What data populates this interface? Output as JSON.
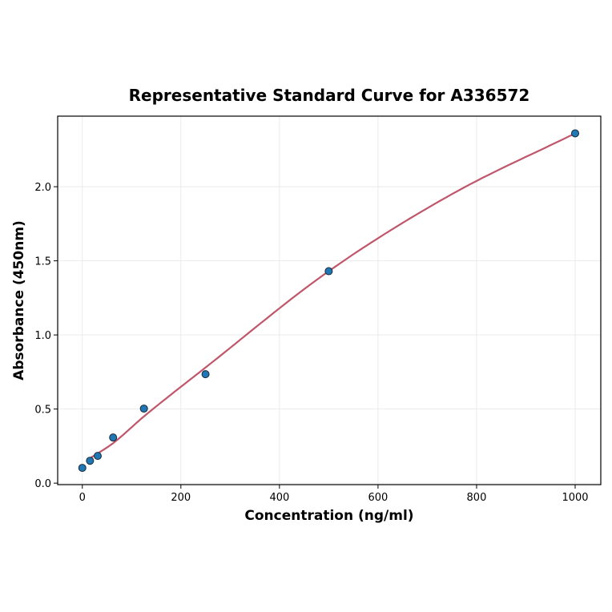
{
  "chart_data": {
    "type": "scatter",
    "title": "Representative Standard Curve for A336572",
    "xlabel": "Concentration (ng/ml)",
    "ylabel": "Absorbance (450nm)",
    "xlim": [
      -50,
      1052
    ],
    "ylim": [
      -0.01,
      2.476
    ],
    "xticks": [
      0,
      200,
      400,
      600,
      800,
      1000
    ],
    "xtick_labels": [
      "0",
      "200",
      "400",
      "600",
      "800",
      "1000"
    ],
    "yticks": [
      0.0,
      0.5,
      1.0,
      1.5,
      2.0
    ],
    "ytick_labels": [
      "0.0",
      "0.5",
      "1.0",
      "1.5",
      "2.0"
    ],
    "grid": true,
    "points": {
      "x": [
        0,
        15.6,
        31.25,
        62.5,
        125,
        250,
        500,
        1000
      ],
      "y": [
        0.103,
        0.151,
        0.184,
        0.308,
        0.503,
        0.735,
        1.43,
        2.36
      ],
      "color": "#1f77b4"
    },
    "fit_curve": {
      "x": [
        15.6,
        62.5,
        125,
        250,
        500,
        750,
        1000
      ],
      "y": [
        0.168,
        0.27,
        0.45,
        0.78,
        1.43,
        1.95,
        2.36
      ],
      "color": "#c0566a"
    }
  }
}
